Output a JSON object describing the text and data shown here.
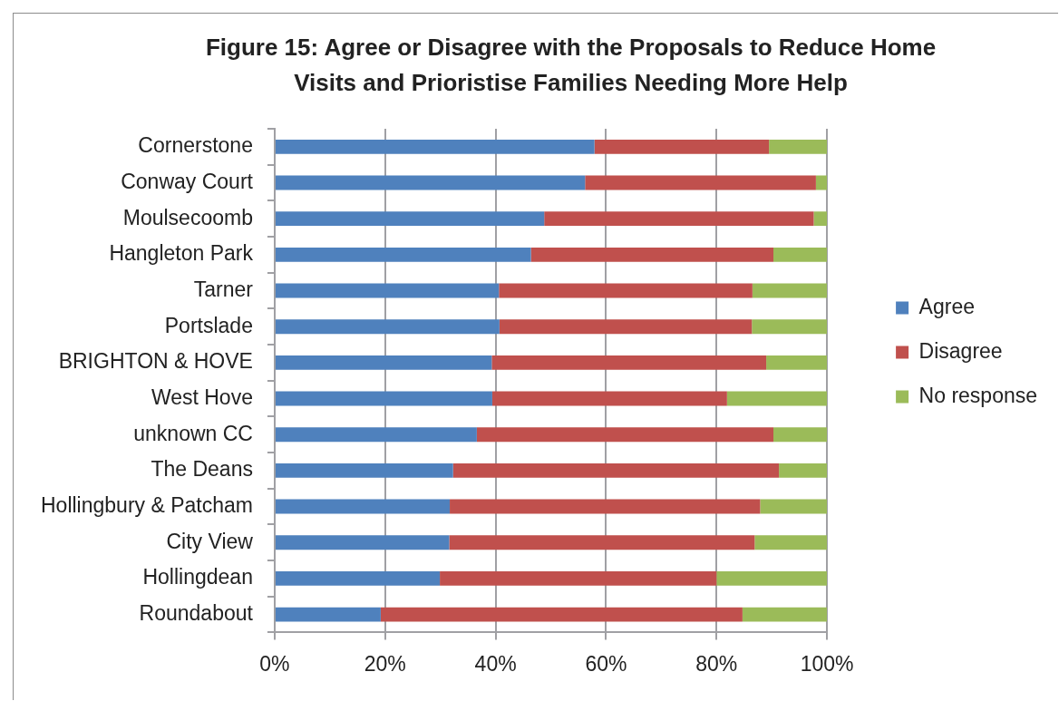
{
  "chart_data": {
    "type": "bar",
    "orientation": "horizontal",
    "stacked": true,
    "title": "Figure 15: Agree or Disagree with the Proposals to Reduce Home Visits and Prioristise Families Needing More Help",
    "categories": [
      "Cornerstone",
      "Conway Court",
      "Moulsecoomb",
      "Hangleton Park",
      "Tarner",
      "Portslade",
      "BRIGHTON & HOVE",
      "West Hove",
      "unknown CC",
      "The Deans",
      "Hollingbury & Patcham",
      "City View",
      "Hollingdean",
      "Roundabout"
    ],
    "series": [
      {
        "name": "Agree",
        "color": "#4f81bd",
        "values": [
          57.9,
          56.2,
          48.8,
          46.4,
          40.6,
          40.7,
          39.3,
          39.4,
          36.6,
          32.3,
          31.7,
          31.6,
          29.9,
          19.2
        ]
      },
      {
        "name": "Disagree",
        "color": "#c0504d",
        "values": [
          31.6,
          41.8,
          48.8,
          43.9,
          45.9,
          45.7,
          49.7,
          42.5,
          53.7,
          59.0,
          56.2,
          55.3,
          50.1,
          65.5
        ]
      },
      {
        "name": "No response",
        "color": "#9bbb59",
        "values": [
          10.5,
          2.0,
          2.4,
          9.7,
          13.5,
          13.6,
          11.0,
          18.1,
          9.7,
          8.7,
          12.1,
          13.1,
          20.0,
          15.3
        ]
      }
    ],
    "xlim": [
      0,
      100
    ],
    "xticks": [
      {
        "value": 0,
        "label": "0%"
      },
      {
        "value": 20,
        "label": "20%"
      },
      {
        "value": 40,
        "label": "40%"
      },
      {
        "value": 60,
        "label": "60%"
      },
      {
        "value": 80,
        "label": "80%"
      },
      {
        "value": 100,
        "label": "100%"
      }
    ],
    "grid": "x",
    "legend": "right"
  }
}
